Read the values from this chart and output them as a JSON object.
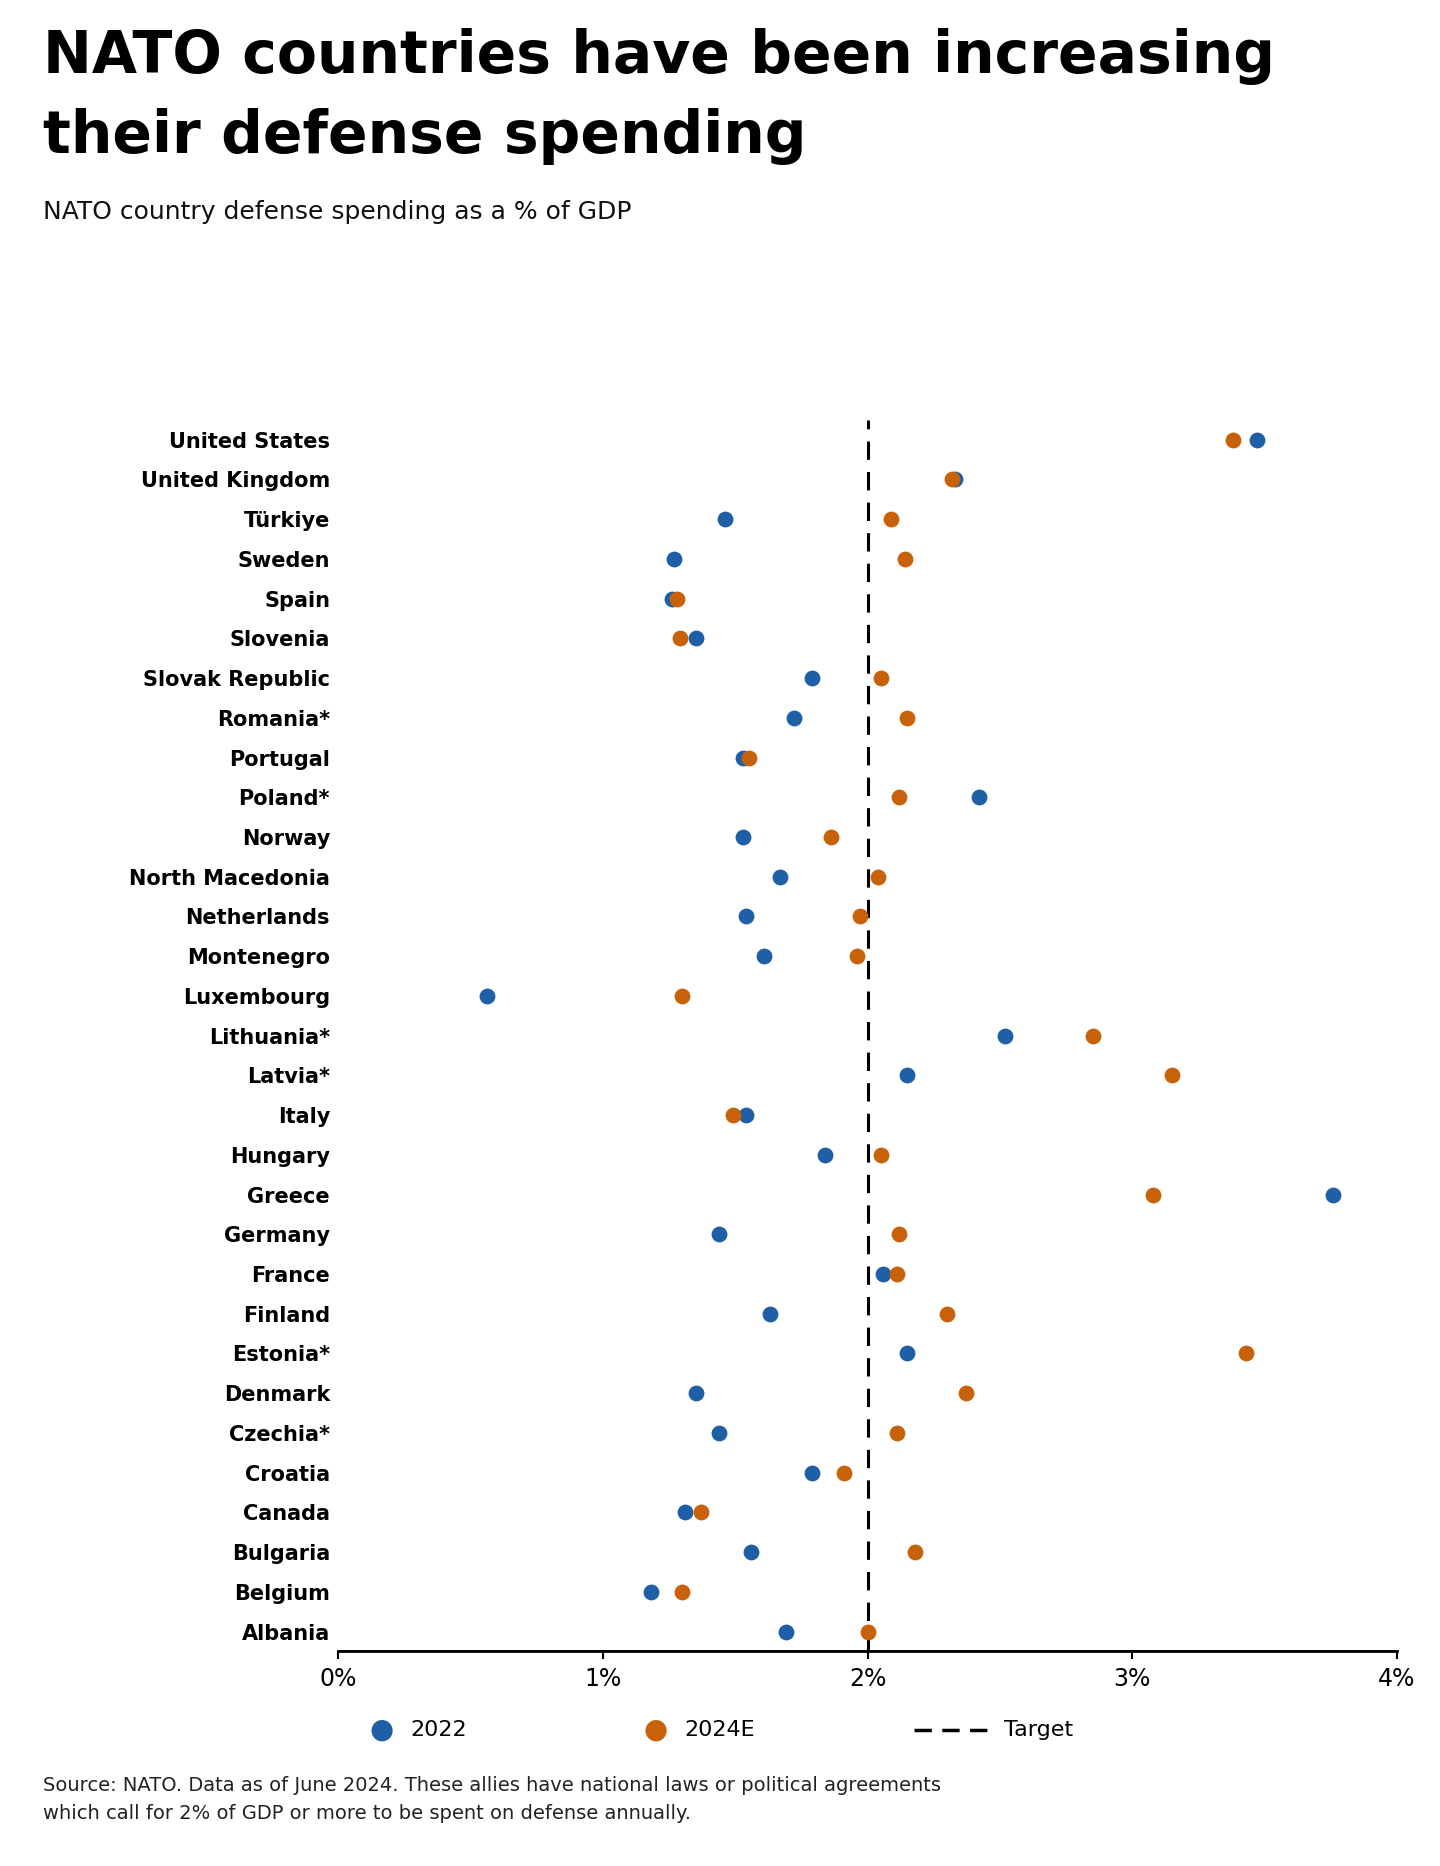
{
  "title_line1": "NATO countries have been increasing",
  "title_line2": "their defense spending",
  "subtitle": "NATO country defense spending as a % of GDP",
  "source": "Source: NATO. Data as of June 2024. These allies have national laws or political agreements\nwhich call for 2% of GDP or more to be spent on defense annually.",
  "color_2022": "#1f5fa6",
  "color_2024": "#c8620a",
  "target_line": 2.0,
  "countries": [
    "United States",
    "United Kingdom",
    "Türkiye",
    "Sweden",
    "Spain",
    "Slovenia",
    "Slovak Republic",
    "Romania*",
    "Portugal",
    "Poland*",
    "Norway",
    "North Macedonia",
    "Netherlands",
    "Montenegro",
    "Luxembourg",
    "Lithuania*",
    "Latvia*",
    "Italy",
    "Hungary",
    "Greece",
    "Germany",
    "France",
    "Finland",
    "Estonia*",
    "Denmark",
    "Czechia*",
    "Croatia",
    "Canada",
    "Bulgaria",
    "Belgium",
    "Albania"
  ],
  "values_2022": [
    3.47,
    2.33,
    1.46,
    1.27,
    1.26,
    1.35,
    1.79,
    1.72,
    1.53,
    2.42,
    1.53,
    1.67,
    1.54,
    1.61,
    0.56,
    2.52,
    2.15,
    1.54,
    1.84,
    3.76,
    1.44,
    2.06,
    1.63,
    2.15,
    1.35,
    1.44,
    1.79,
    1.31,
    1.56,
    1.18,
    1.69
  ],
  "values_2024": [
    3.38,
    2.32,
    2.09,
    2.14,
    1.28,
    1.29,
    2.05,
    2.15,
    1.55,
    2.12,
    1.86,
    2.04,
    1.97,
    1.96,
    1.3,
    2.85,
    3.15,
    1.49,
    2.05,
    3.08,
    2.12,
    2.11,
    2.3,
    3.43,
    2.37,
    2.11,
    1.91,
    1.37,
    2.18,
    1.3,
    2.0
  ],
  "xlim": [
    0,
    4.0
  ],
  "xticks": [
    0,
    1,
    2,
    3,
    4
  ],
  "xticklabels": [
    "0%",
    "1%",
    "2%",
    "3%",
    "4%"
  ],
  "dot_size": 130,
  "title_fontsize": 42,
  "subtitle_fontsize": 18,
  "country_fontsize": 15,
  "tick_fontsize": 17,
  "legend_fontsize": 16,
  "source_fontsize": 14
}
